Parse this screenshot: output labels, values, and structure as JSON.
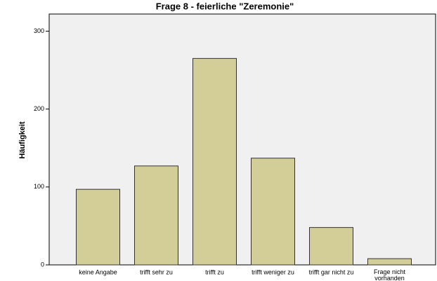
{
  "chart_data": {
    "type": "bar",
    "title": "Frage 8 - feierliche \"Zeremonie\"",
    "y_label": "Häufigkeit",
    "categories": [
      "keine Angabe",
      "trifft sehr zu",
      "trifft zu",
      "trifft weniger zu",
      "trifft gar nicht zu",
      "Frage nicht vorhanden"
    ],
    "values": [
      97,
      127,
      265,
      137,
      48,
      8
    ],
    "color": "#d3ce97",
    "ylim": [
      0,
      322
    ],
    "yticks": [
      0,
      100,
      200,
      300
    ],
    "grid": false
  }
}
